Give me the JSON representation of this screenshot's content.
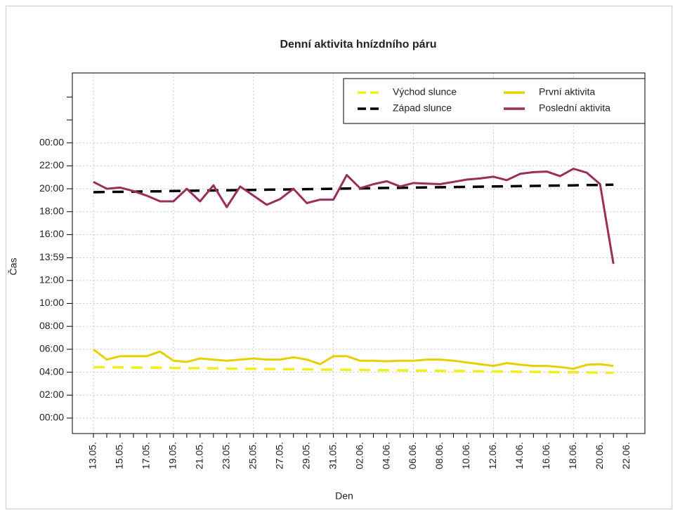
{
  "chart_data": {
    "type": "line",
    "title": "Denní aktivita hnízdního páru",
    "xlabel": "Den",
    "ylabel": "Čas",
    "categories": [
      "13.05.",
      null,
      "15.05.",
      null,
      "17.05.",
      null,
      "19.05.",
      null,
      "21.05.",
      null,
      "23.05.",
      null,
      "25.05.",
      null,
      "27.05.",
      null,
      "29.05.",
      null,
      "31.05.",
      null,
      "02.06.",
      null,
      "04.06.",
      null,
      "06.06.",
      null,
      "08.06.",
      null,
      "10.06.",
      null,
      "12.06.",
      null,
      "14.06.",
      null,
      "16.06.",
      null,
      "18.06.",
      null,
      "20.06.",
      null,
      "22.06."
    ],
    "series": [
      {
        "name": "Východ slunce",
        "color": "#f2ee1a",
        "dashed": true,
        "values": [
          4.45,
          4.44,
          4.42,
          4.41,
          4.4,
          4.39,
          4.37,
          4.36,
          4.35,
          4.34,
          4.32,
          4.31,
          4.3,
          4.28,
          4.27,
          4.26,
          4.25,
          4.23,
          4.22,
          4.21,
          4.2,
          4.18,
          4.17,
          4.16,
          4.14,
          4.13,
          4.12,
          4.11,
          4.09,
          4.08,
          4.07,
          4.05,
          4.04,
          4.03,
          4.02,
          4.0,
          3.99,
          3.98,
          3.97,
          3.95,
          null
        ]
      },
      {
        "name": "Západ slunce",
        "color": "#000000",
        "dashed": true,
        "values": [
          19.7,
          19.72,
          19.73,
          19.75,
          19.77,
          19.78,
          19.8,
          19.82,
          19.83,
          19.85,
          19.87,
          19.88,
          19.9,
          19.92,
          19.93,
          19.95,
          19.97,
          19.98,
          20.0,
          20.02,
          20.03,
          20.05,
          20.07,
          20.08,
          20.1,
          20.12,
          20.13,
          20.15,
          20.17,
          20.18,
          20.2,
          20.22,
          20.23,
          20.25,
          20.27,
          20.28,
          20.3,
          20.32,
          20.33,
          20.35,
          null
        ]
      },
      {
        "name": "První aktivita",
        "color": "#e8d000",
        "dashed": false,
        "values": [
          6.0,
          5.1,
          5.4,
          5.4,
          5.4,
          5.8,
          5.0,
          4.9,
          5.2,
          5.1,
          5.0,
          5.1,
          5.2,
          5.1,
          5.1,
          5.3,
          5.1,
          4.7,
          5.4,
          5.4,
          5.0,
          5.0,
          4.95,
          5.0,
          5.0,
          5.1,
          5.1,
          5.0,
          4.85,
          4.7,
          4.55,
          4.8,
          4.65,
          4.55,
          4.55,
          4.45,
          4.3,
          4.65,
          4.7,
          4.55,
          null
        ]
      },
      {
        "name": "Poslední aktivita",
        "color": "#9b2d5c",
        "dashed": false,
        "values": [
          20.6,
          20.0,
          20.1,
          19.8,
          19.4,
          18.9,
          18.9,
          20.0,
          18.9,
          20.3,
          18.4,
          20.2,
          19.4,
          18.6,
          19.1,
          20.0,
          18.75,
          19.05,
          19.05,
          21.2,
          20.05,
          20.4,
          20.65,
          20.2,
          20.5,
          20.45,
          20.4,
          20.6,
          20.8,
          20.9,
          21.05,
          20.75,
          21.3,
          21.45,
          21.5,
          21.1,
          21.75,
          21.4,
          20.4,
          13.45,
          null
        ]
      }
    ],
    "ylim": [
      -1.35,
      30.1
    ],
    "yticks": [
      {
        "value": 0,
        "label": "00:00"
      },
      {
        "value": 2,
        "label": "02:00"
      },
      {
        "value": 4,
        "label": "04:00"
      },
      {
        "value": 6,
        "label": "06:00"
      },
      {
        "value": 8,
        "label": "08:00"
      },
      {
        "value": 10,
        "label": "10:00"
      },
      {
        "value": 12,
        "label": "12:00"
      },
      {
        "value": 13.98,
        "label": "13:59"
      },
      {
        "value": 16,
        "label": "16:00"
      },
      {
        "value": 18,
        "label": "18:00"
      },
      {
        "value": 20,
        "label": "20:00"
      },
      {
        "value": 22,
        "label": "22:00"
      },
      {
        "value": 24,
        "label": "00:00"
      },
      {
        "value": 26,
        "label": null
      },
      {
        "value": 28,
        "label": null
      }
    ],
    "grid": true,
    "legend": "top-right"
  }
}
